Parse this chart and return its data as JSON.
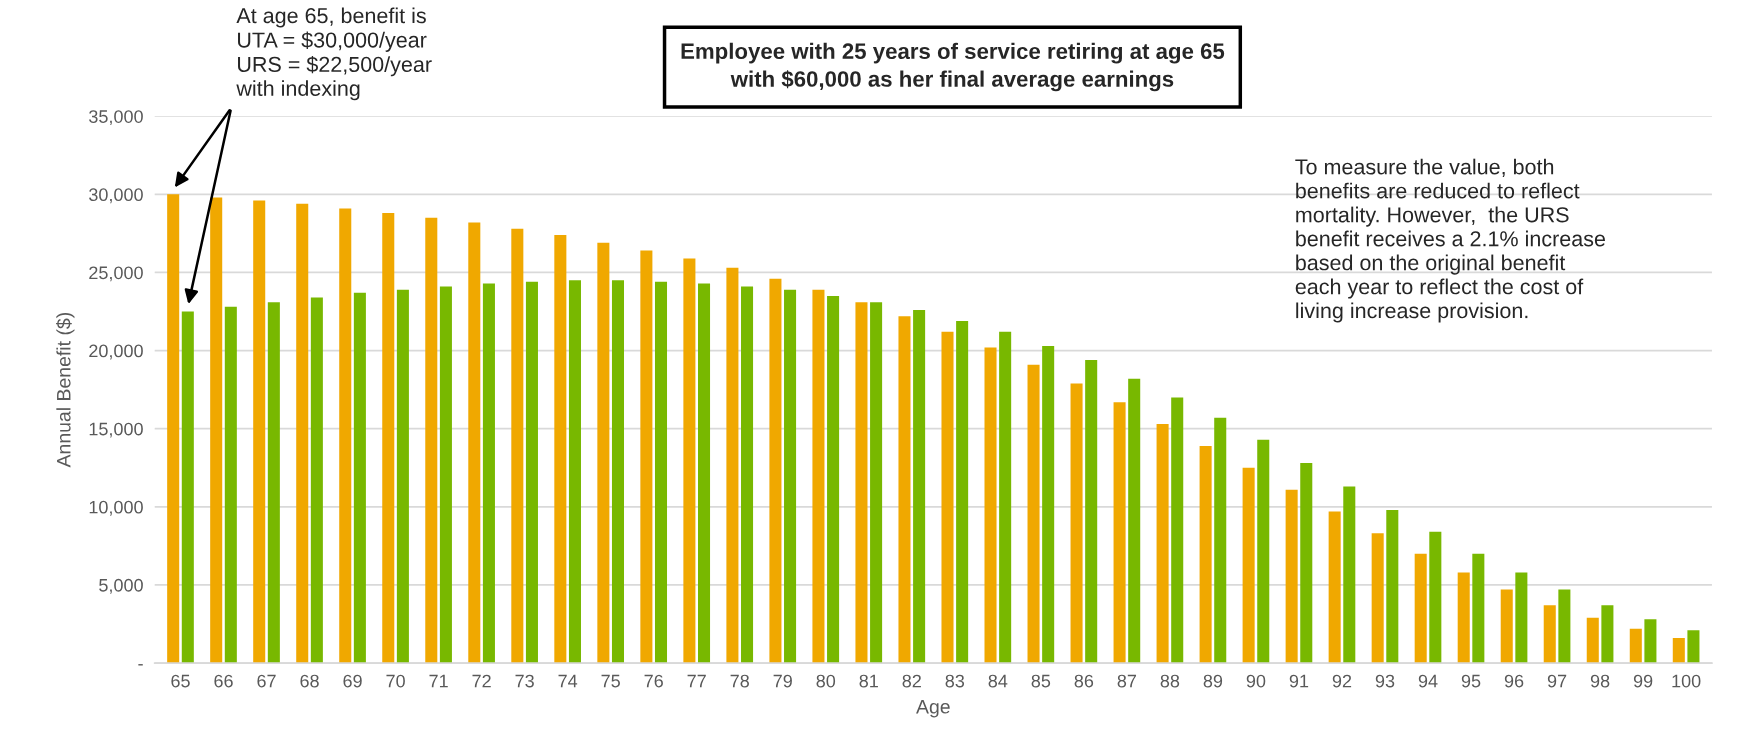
{
  "chart_data": {
    "type": "bar",
    "title": "Employee with 25 years of service retiring at age 65\nwith $60,000 as her final average earnings",
    "xlabel": "Age",
    "ylabel": "Annual Benefit ($)",
    "categories": [
      "65",
      "66",
      "67",
      "68",
      "69",
      "70",
      "71",
      "72",
      "73",
      "74",
      "75",
      "76",
      "77",
      "78",
      "79",
      "80",
      "81",
      "82",
      "83",
      "84",
      "85",
      "86",
      "87",
      "88",
      "89",
      "90",
      "91",
      "92",
      "93",
      "94",
      "95",
      "96",
      "97",
      "98",
      "99",
      "100"
    ],
    "series": [
      {
        "color": "#f0a800",
        "values": [
          30000,
          29800,
          29600,
          29400,
          29100,
          28800,
          28500,
          28200,
          27800,
          27400,
          26900,
          26400,
          25900,
          25300,
          24600,
          23900,
          23100,
          22200,
          21200,
          20200,
          19100,
          17900,
          16700,
          15300,
          13900,
          12500,
          11100,
          9700,
          8300,
          7000,
          5800,
          4700,
          3700,
          2900,
          2200,
          1600
        ]
      },
      {
        "color": "#78b800",
        "values": [
          22500,
          22800,
          23100,
          23400,
          23700,
          23900,
          24100,
          24300,
          24400,
          24500,
          24500,
          24400,
          24300,
          24100,
          23900,
          23500,
          23100,
          22600,
          21900,
          21200,
          20300,
          19400,
          18200,
          17000,
          15700,
          14300,
          12800,
          11300,
          9800,
          8400,
          7000,
          5800,
          4700,
          3700,
          2800,
          2100
        ]
      }
    ],
    "ylim": [
      0,
      35000
    ],
    "yticks": [
      {
        "value": 0,
        "label": "-"
      },
      {
        "value": 5000,
        "label": "5,000"
      },
      {
        "value": 10000,
        "label": "10,000"
      },
      {
        "value": 15000,
        "label": "15,000"
      },
      {
        "value": 20000,
        "label": "20,000"
      },
      {
        "value": 25000,
        "label": "25,000"
      },
      {
        "value": 30000,
        "label": "30,000"
      },
      {
        "value": 35000,
        "label": "35,000"
      }
    ],
    "grid": "y",
    "annotations": [
      "At age 65, benefit is\nUTA = $30,000/year\nURS = $22,500/year\nwith indexing",
      "To measure the value, both\nbenefits are reduced to reflect\nmortality. However,  the URS\nbenefit receives a 2.1% increase\nbased on the original benefit\neach year to reflect the cost of\nliving increase provision."
    ]
  }
}
